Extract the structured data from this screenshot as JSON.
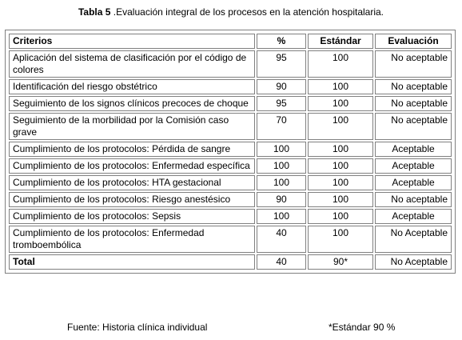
{
  "caption": {
    "label": "Tabla 5",
    "text": " .Evaluación integral de los procesos en la atención hospitalaria."
  },
  "table": {
    "headers": [
      "Criterios",
      "%",
      "Estándar",
      "Evaluación"
    ],
    "rows": [
      {
        "criterio": "Aplicación del sistema de clasificación por el código de colores",
        "pct": "95",
        "estandar": "100",
        "evaluacion": "No aceptable"
      },
      {
        "criterio": "Identificación del riesgo obstétrico",
        "pct": "90",
        "estandar": "100",
        "evaluacion": "No aceptable"
      },
      {
        "criterio": "Seguimiento de los signos clínicos precoces de choque",
        "pct": "95",
        "estandar": "100",
        "evaluacion": "No aceptable"
      },
      {
        "criterio": "Seguimiento de la morbilidad  por la Comisión caso grave",
        "pct": "70",
        "estandar": "100",
        "evaluacion": "No aceptable"
      },
      {
        "criterio": "Cumplimiento de los protocolos: Pérdida de sangre",
        "pct": "100",
        "estandar": "100",
        "evaluacion": "Aceptable"
      },
      {
        "criterio": "Cumplimiento de los protocolos: Enfermedad específica",
        "pct": "100",
        "estandar": "100",
        "evaluacion": "Aceptable"
      },
      {
        "criterio": "Cumplimiento de los protocolos: HTA gestacional",
        "pct": "100",
        "estandar": "100",
        "evaluacion": "Aceptable"
      },
      {
        "criterio": "Cumplimiento de los protocolos: Riesgo anestésico",
        "pct": "90",
        "estandar": "100",
        "evaluacion": "No aceptable"
      },
      {
        "criterio": "Cumplimiento de los protocolos: Sepsis",
        "pct": "100",
        "estandar": "100",
        "evaluacion": "Aceptable"
      },
      {
        "criterio": "Cumplimiento de los protocolos: Enfermedad tromboembólica",
        "pct": "40",
        "estandar": "100",
        "evaluacion": "No Aceptable"
      }
    ],
    "total": {
      "criterio": "Total",
      "pct": "40",
      "estandar": "90*",
      "evaluacion": "No Aceptable"
    }
  },
  "footer": {
    "source": "Fuente: Historia clínica individual",
    "note": "*Estándar 90 %"
  }
}
